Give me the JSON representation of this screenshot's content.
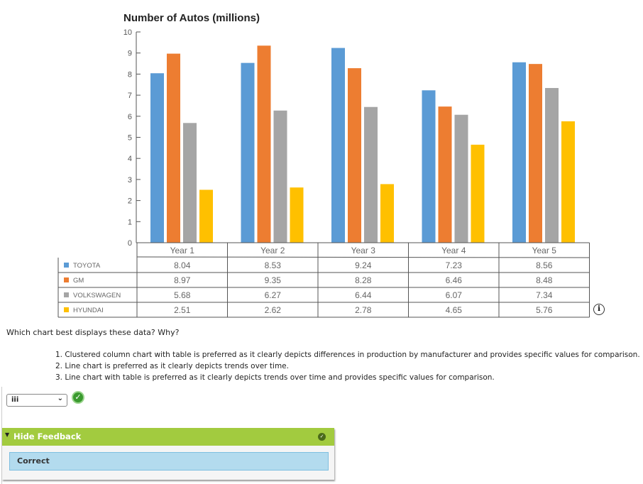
{
  "chart_data": {
    "type": "bar",
    "title": "Number of Autos (millions)",
    "categories": [
      "Year 1",
      "Year 2",
      "Year 3",
      "Year 4",
      "Year 5"
    ],
    "ylim": [
      0,
      10
    ],
    "yticks": [
      0,
      1,
      2,
      3,
      4,
      5,
      6,
      7,
      8,
      9,
      10
    ],
    "series": [
      {
        "name": "TOYOTA",
        "color": "#5b9bd5",
        "values": [
          8.04,
          8.53,
          9.24,
          7.23,
          8.56
        ]
      },
      {
        "name": "GM",
        "color": "#ed7d31",
        "values": [
          8.97,
          9.35,
          8.28,
          6.46,
          8.48
        ]
      },
      {
        "name": "VOLKSWAGEN",
        "color": "#a5a5a5",
        "values": [
          5.68,
          6.27,
          6.44,
          6.07,
          7.34
        ]
      },
      {
        "name": "HYUNDAI",
        "color": "#ffc000",
        "values": [
          2.51,
          2.62,
          2.78,
          4.65,
          5.76
        ]
      }
    ],
    "value_labels": [
      [
        "8.04",
        "8.53",
        "9.24",
        "7.23",
        "8.56"
      ],
      [
        "8.97",
        "9.35",
        "8.28",
        "6.46",
        "8.48"
      ],
      [
        "5.68",
        "6.27",
        "6.44",
        "6.07",
        "7.34"
      ],
      [
        "2.51",
        "2.62",
        "2.78",
        "4.65",
        "5.76"
      ]
    ]
  },
  "question": "Which chart best displays these data? Why?",
  "options": [
    "1. Clustered column chart with table is preferred as it clearly depicts differences in production by manufacturer and provides specific values for comparison.",
    "2. Line chart is preferred as it clearly depicts trends over time.",
    "3. Line chart with table is preferred as it clearly depicts trends over time and provides specific values for comparison."
  ],
  "answer_select": {
    "value": "iii"
  },
  "info_icon": "i",
  "feedback": {
    "header": "Hide Feedback",
    "message": "Correct"
  }
}
